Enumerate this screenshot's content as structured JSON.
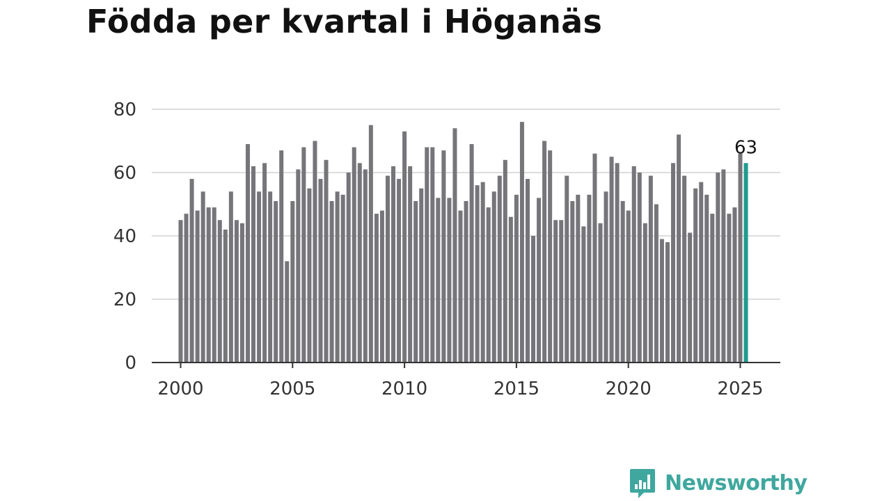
{
  "title": "Födda per kvartal i Höganäs",
  "brand": {
    "name": "Newsworthy",
    "color": "#3fa79e",
    "icon": "newsworthy-chart-bubble-icon"
  },
  "chart_data": {
    "type": "bar",
    "title": "Födda per kvartal i Höganäs",
    "xlabel": "",
    "ylabel": "",
    "ylim": [
      0,
      80
    ],
    "yticks": [
      0,
      20,
      40,
      60,
      80
    ],
    "xticks": [
      "2000",
      "2005",
      "2010",
      "2015",
      "2020",
      "2025"
    ],
    "grid": true,
    "colors": {
      "bar": "#75757a",
      "highlight": "#1f9a8e",
      "grid": "#dddddd",
      "axis": "#333333"
    },
    "start": "2000 Q1",
    "values": [
      45,
      47,
      58,
      48,
      54,
      49,
      49,
      45,
      42,
      54,
      45,
      44,
      69,
      62,
      54,
      63,
      54,
      51,
      67,
      32,
      51,
      61,
      68,
      55,
      70,
      58,
      64,
      51,
      54,
      53,
      60,
      68,
      63,
      61,
      75,
      47,
      48,
      59,
      62,
      58,
      73,
      62,
      51,
      55,
      68,
      68,
      52,
      67,
      52,
      74,
      48,
      51,
      69,
      56,
      57,
      49,
      54,
      59,
      64,
      46,
      53,
      76,
      58,
      40,
      52,
      70,
      67,
      45,
      45,
      59,
      51,
      53,
      43,
      53,
      66,
      44,
      54,
      65,
      63,
      51,
      48,
      62,
      60,
      44,
      59,
      50,
      39,
      38,
      63,
      72,
      59,
      41,
      55,
      57,
      53,
      47,
      60,
      61,
      47,
      49,
      66,
      63
    ],
    "highlight_label": "63"
  }
}
